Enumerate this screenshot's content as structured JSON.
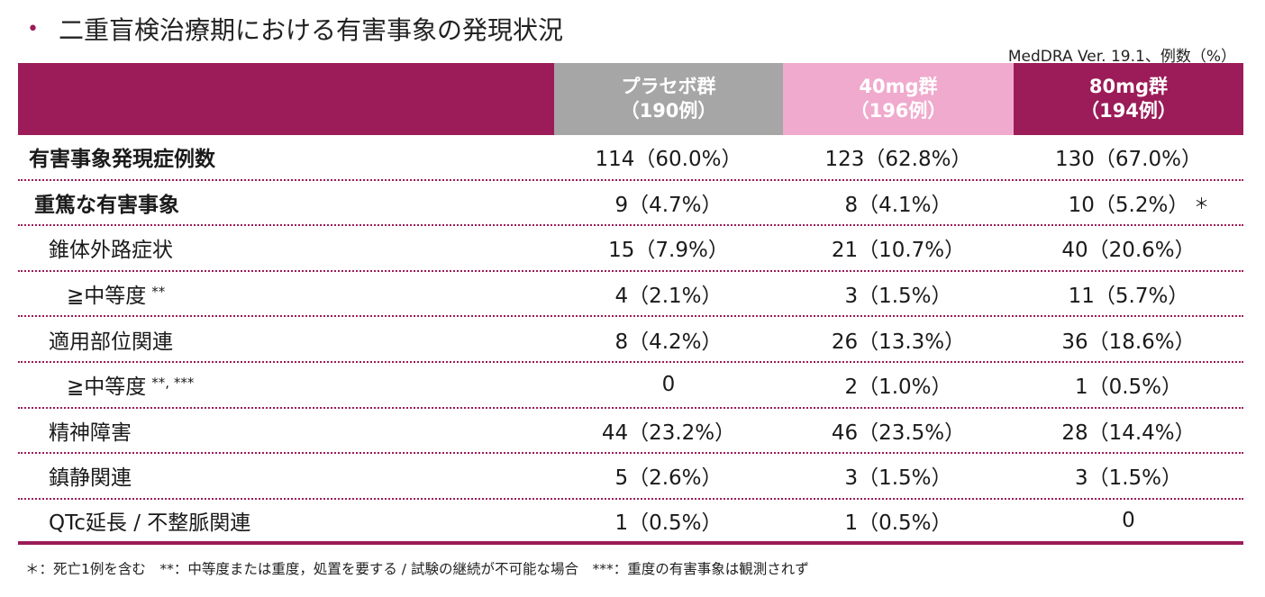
{
  "title": "二重盲検治療期における有害事象の発現状況",
  "bullet": "•",
  "source_note": "MedDRA Ver. 19.1、例数（%）",
  "colors": {
    "accent": "#9b1c58",
    "placebo_header": "#a6a6a6",
    "mg40_header": "#f0aacd",
    "mg80_header": "#9b1c58"
  },
  "columns": [
    {
      "name": "プラセボ群",
      "n": "（190例）"
    },
    {
      "name": "40mg群",
      "n": "（196例）"
    },
    {
      "name": "80mg群",
      "n": "（194例）"
    }
  ],
  "rows": [
    {
      "label": "有害事象発現症例数",
      "sup": "",
      "values": [
        "114（60.0%）",
        "123（62.8%）",
        "130（67.0%）"
      ],
      "mark": ""
    },
    {
      "label": "重篤な有害事象",
      "sup": "",
      "values": [
        "9（4.7%）",
        "8（4.1%）",
        "10（5.2%）"
      ],
      "mark": "＊"
    },
    {
      "label": "錐体外路症状",
      "sup": "",
      "values": [
        "15（7.9%）",
        "21（10.7%）",
        "40（20.6%）"
      ],
      "mark": ""
    },
    {
      "label": "≧中等度",
      "sup": "**",
      "values": [
        "4（2.1%）",
        "3（1.5%）",
        "11（5.7%）"
      ],
      "mark": ""
    },
    {
      "label": "適用部位関連",
      "sup": "",
      "values": [
        "8（4.2%）",
        "26（13.3%）",
        "36（18.6%）"
      ],
      "mark": ""
    },
    {
      "label": "≧中等度",
      "sup": "**, ***",
      "values": [
        "0",
        "2（1.0%）",
        "1（0.5%）"
      ],
      "mark": ""
    },
    {
      "label": "精神障害",
      "sup": "",
      "values": [
        "44（23.2%）",
        "46（23.5%）",
        "28（14.4%）"
      ],
      "mark": ""
    },
    {
      "label": "鎮静関連",
      "sup": "",
      "values": [
        "5（2.6%）",
        "3（1.5%）",
        "3（1.5%）"
      ],
      "mark": ""
    },
    {
      "label": "QTc延長 / 不整脈関連",
      "sup": "",
      "values": [
        "1（0.5%）",
        "1（0.5%）",
        "0"
      ],
      "mark": ""
    }
  ],
  "footnote": "＊：死亡1例を含む　**：中等度または重度，処置を要する / 試験の継続が不可能な場合　***：重度の有害事象は観測されず"
}
